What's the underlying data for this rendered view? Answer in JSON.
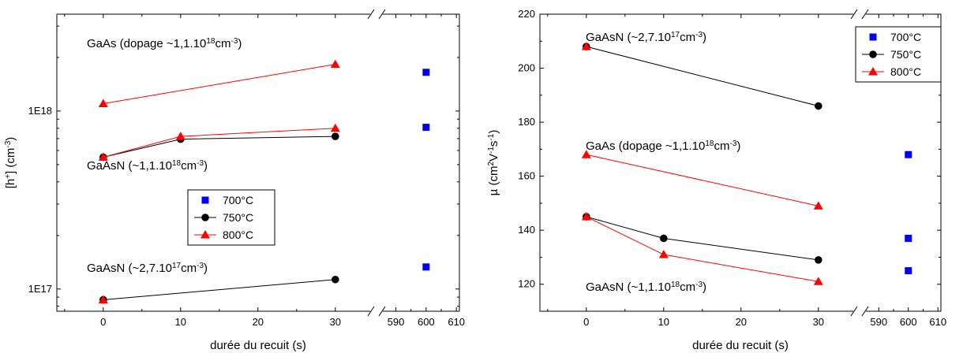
{
  "chart_data": [
    {
      "type": "scatter",
      "yscale": "log",
      "xlabel": "durée du recuit (s)",
      "ylabel": {
        "base": "[h",
        "sup": "+",
        "mid": "] (cm",
        "sup2": "-3",
        "end": ")"
      },
      "ylim": [
        75000000000000000,
        3500000000000000000
      ],
      "ytick_values": [
        100000000000000000,
        1000000000000000000
      ],
      "ytick_labels": [
        "1E17",
        "1E18"
      ],
      "x_segments": [
        {
          "range": [
            -6,
            34
          ],
          "ticks": [
            0,
            10,
            20,
            30
          ],
          "tick_labels": [
            "0",
            "10",
            "20",
            "30"
          ]
        },
        {
          "range": [
            587,
            611
          ],
          "ticks": [
            590,
            600,
            610
          ],
          "tick_labels": [
            "590",
            "600",
            "610"
          ]
        }
      ],
      "legend": {
        "position": "center-right",
        "entries": [
          {
            "label": "700°C",
            "marker": "square",
            "color": "#0000ff",
            "line": false
          },
          {
            "label": "750°C",
            "marker": "circle",
            "color": "#000000",
            "line": true
          },
          {
            "label": "800°C",
            "marker": "triangle",
            "color": "#ff0000",
            "line": true
          }
        ]
      },
      "annotations": [
        {
          "text": "GaAs (dopage ~1,1.10",
          "sup": "18",
          "unit": "cm",
          "unit_sup": "-3",
          "close": ")"
        },
        {
          "text": "GaAsN (~1,1.10",
          "sup": "18",
          "unit": "cm",
          "unit_sup": "-3",
          "close": ")"
        },
        {
          "text": "GaAsN (~2,7.10",
          "sup": "17",
          "unit": "cm",
          "unit_sup": "-3",
          "close": ")"
        }
      ],
      "series": [
        {
          "temp": "800°C",
          "marker": "triangle",
          "color": "#ff0000",
          "line": true,
          "x": [
            0,
            30
          ],
          "y": [
            1100000000000000000,
            1830000000000000000
          ]
        },
        {
          "temp": "750°C",
          "marker": "circle",
          "color": "#000000",
          "line": true,
          "x": [
            0,
            10,
            30
          ],
          "y": [
            550000000000000000,
            695000000000000000,
            720000000000000000
          ]
        },
        {
          "temp": "800°C",
          "marker": "triangle",
          "color": "#ff0000",
          "line": true,
          "x": [
            0,
            10,
            30
          ],
          "y": [
            550000000000000000,
            720000000000000000,
            800000000000000000
          ]
        },
        {
          "temp": "750°C",
          "marker": "circle",
          "color": "#000000",
          "line": true,
          "x": [
            0,
            30
          ],
          "y": [
            87000000000000000,
            113000000000000000
          ]
        },
        {
          "temp": "800°C",
          "marker": "triangle",
          "color": "#ff0000",
          "line": false,
          "x": [
            0
          ],
          "y": [
            87000000000000000
          ]
        },
        {
          "temp": "700°C",
          "marker": "square",
          "color": "#0000ff",
          "line": false,
          "x": [
            600,
            600,
            600
          ],
          "y": [
            1650000000000000000,
            810000000000000000,
            133000000000000000
          ]
        }
      ]
    },
    {
      "type": "scatter",
      "yscale": "linear",
      "xlabel": "durée du recuit (s)",
      "ylabel": {
        "base": "µ (cm",
        "sup": "2",
        "mid": "V",
        "sup2": "-1",
        "mid2": "s",
        "sup3": "-1",
        "end": ")"
      },
      "ylim": [
        110,
        220
      ],
      "ytick_values": [
        120,
        140,
        160,
        180,
        200,
        220
      ],
      "ytick_labels": [
        "120",
        "140",
        "160",
        "180",
        "200",
        "220"
      ],
      "x_segments": [
        {
          "range": [
            -6,
            34
          ],
          "ticks": [
            0,
            10,
            20,
            30
          ],
          "tick_labels": [
            "0",
            "10",
            "20",
            "30"
          ]
        },
        {
          "range": [
            587,
            611
          ],
          "ticks": [
            590,
            600,
            610
          ],
          "tick_labels": [
            "590",
            "600",
            "610"
          ]
        }
      ],
      "legend": {
        "position": "top-right",
        "entries": [
          {
            "label": "700°C",
            "marker": "square",
            "color": "#0000ff",
            "line": false
          },
          {
            "label": "750°C",
            "marker": "circle",
            "color": "#000000",
            "line": true
          },
          {
            "label": "800°C",
            "marker": "triangle",
            "color": "#ff0000",
            "line": true
          }
        ]
      },
      "annotations": [
        {
          "text": "GaAsN (~2,7.10",
          "sup": "17",
          "unit": "cm",
          "unit_sup": "-3",
          "close": ")"
        },
        {
          "text": "GaAs (dopage ~1,1.10",
          "sup": "18",
          "unit": "cm",
          "unit_sup": "-3",
          "close": ")"
        },
        {
          "text": "GaAsN (~1,1.10",
          "sup": "18",
          "unit": "cm",
          "unit_sup": "-3",
          "close": ")"
        }
      ],
      "series": [
        {
          "temp": "750°C",
          "marker": "circle",
          "color": "#000000",
          "line": true,
          "x": [
            0,
            30
          ],
          "y": [
            208,
            186
          ]
        },
        {
          "temp": "800°C",
          "marker": "triangle",
          "color": "#ff0000",
          "line": false,
          "x": [
            0
          ],
          "y": [
            208
          ]
        },
        {
          "temp": "800°C",
          "marker": "triangle",
          "color": "#ff0000",
          "line": true,
          "x": [
            0,
            30
          ],
          "y": [
            168,
            149
          ]
        },
        {
          "temp": "750°C",
          "marker": "circle",
          "color": "#000000",
          "line": true,
          "x": [
            0,
            10,
            30
          ],
          "y": [
            145,
            137,
            129
          ]
        },
        {
          "temp": "800°C",
          "marker": "triangle",
          "color": "#ff0000",
          "line": true,
          "x": [
            0,
            10,
            30
          ],
          "y": [
            145,
            131,
            121
          ]
        },
        {
          "temp": "700°C",
          "marker": "square",
          "color": "#0000ff",
          "line": false,
          "x": [
            600,
            600,
            600
          ],
          "y": [
            168,
            137,
            125
          ]
        }
      ]
    }
  ]
}
